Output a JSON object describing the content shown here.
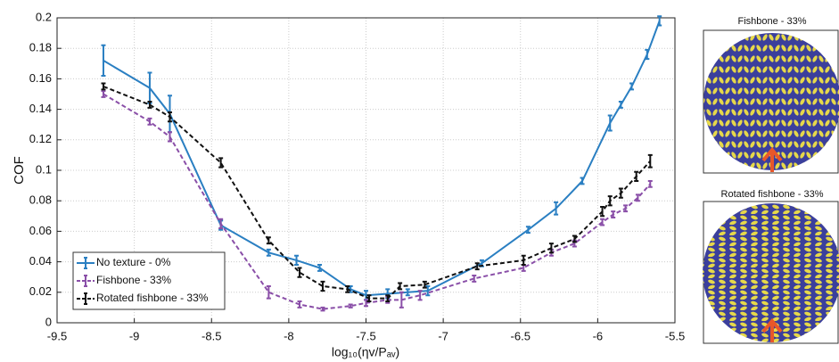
{
  "chart_data": {
    "type": "errorbar-line",
    "xlabel": "log₁₀(ηv/Pₐᵥ)",
    "ylabel": "COF",
    "xlim": [
      -9.5,
      -5.5
    ],
    "xticks": [
      -9.5,
      -9,
      -8.5,
      -8,
      -7.5,
      -7,
      -6.5,
      -6,
      -5.5
    ],
    "ylim": [
      0,
      0.2
    ],
    "yticks": [
      0,
      0.02,
      0.04,
      0.06,
      0.08,
      0.1,
      0.12,
      0.14,
      0.16,
      0.18,
      0.2
    ],
    "grid": true,
    "legend": "lower-left",
    "series": [
      {
        "name": "No texture - 0%",
        "color": "#2a7fc2",
        "dash": false,
        "x": [
          -9.2,
          -8.9,
          -8.77,
          -8.44,
          -8.13,
          -7.95,
          -7.8,
          -7.6,
          -7.5,
          -7.36,
          -7.23,
          -7.1,
          -6.75,
          -6.45,
          -6.27,
          -6.1,
          -5.92,
          -5.85,
          -5.78,
          -5.68,
          -5.6
        ],
        "values": [
          0.172,
          0.154,
          0.137,
          0.064,
          0.046,
          0.041,
          0.036,
          0.022,
          0.018,
          0.019,
          0.02,
          0.021,
          0.039,
          0.061,
          0.075,
          0.093,
          0.131,
          0.143,
          0.155,
          0.176,
          0.198
        ],
        "errors": [
          0.01,
          0.01,
          0.012,
          0.003,
          0.002,
          0.003,
          0.002,
          0.002,
          0.003,
          0.003,
          0.002,
          0.003,
          0.002,
          0.002,
          0.004,
          0.002,
          0.005,
          0.002,
          0.002,
          0.003,
          0.003
        ]
      },
      {
        "name": "Fishbone - 33%",
        "color": "#8a4fa8",
        "dash": true,
        "x": [
          -9.2,
          -8.9,
          -8.77,
          -8.44,
          -8.13,
          -7.93,
          -7.78,
          -7.6,
          -7.5,
          -7.36,
          -7.27,
          -7.15,
          -6.8,
          -6.48,
          -6.3,
          -6.15,
          -5.97,
          -5.9,
          -5.82,
          -5.74,
          -5.66
        ],
        "values": [
          0.15,
          0.132,
          0.122,
          0.065,
          0.02,
          0.012,
          0.009,
          0.011,
          0.013,
          0.015,
          0.015,
          0.018,
          0.029,
          0.036,
          0.046,
          0.052,
          0.066,
          0.071,
          0.075,
          0.082,
          0.091
        ],
        "errors": [
          0.002,
          0.002,
          0.003,
          0.003,
          0.004,
          0.002,
          0.001,
          0.001,
          0.002,
          0.002,
          0.005,
          0.003,
          0.002,
          0.002,
          0.002,
          0.002,
          0.002,
          0.002,
          0.002,
          0.002,
          0.002
        ]
      },
      {
        "name": "Rotated fishbone  - 33%",
        "color": "#111111",
        "dash": true,
        "x": [
          -9.2,
          -8.9,
          -8.77,
          -8.44,
          -8.13,
          -7.93,
          -7.78,
          -7.62,
          -7.48,
          -7.36,
          -7.28,
          -7.12,
          -6.78,
          -6.48,
          -6.3,
          -6.15,
          -5.97,
          -5.92,
          -5.85,
          -5.75,
          -5.66
        ],
        "values": [
          0.155,
          0.143,
          0.135,
          0.105,
          0.054,
          0.033,
          0.024,
          0.022,
          0.016,
          0.016,
          0.024,
          0.025,
          0.037,
          0.041,
          0.049,
          0.055,
          0.073,
          0.08,
          0.085,
          0.096,
          0.106
        ],
        "errors": [
          0.002,
          0.002,
          0.003,
          0.003,
          0.002,
          0.003,
          0.003,
          0.002,
          0.002,
          0.002,
          0.002,
          0.002,
          0.002,
          0.003,
          0.003,
          0.002,
          0.003,
          0.003,
          0.003,
          0.003,
          0.004
        ]
      }
    ]
  },
  "images": [
    {
      "title": "Fishbone - 33%"
    },
    {
      "title": "Rotated fishbone  - 33%"
    }
  ]
}
